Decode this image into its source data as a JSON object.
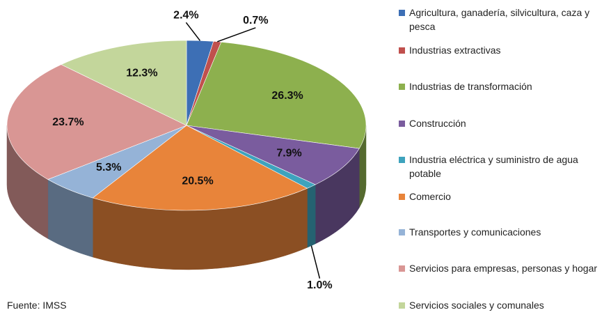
{
  "chart_data": {
    "type": "pie3d",
    "categories": [
      "Agricultura, ganadería, silvicultura, caza y pesca",
      "Industrias extractivas",
      "Industrias de transformación",
      "Construcción",
      "Industria eléctrica y suministro de agua potable",
      "Comercio",
      "Transportes y comunicaciones",
      "Servicios para empresas, personas y hogar",
      "Servicios sociales y comunales"
    ],
    "values": [
      2.4,
      0.7,
      26.3,
      7.9,
      1.0,
      20.5,
      5.3,
      23.7,
      12.3
    ],
    "value_labels": [
      "2.4%",
      "0.7%",
      "26.3%",
      "7.9%",
      "1.0%",
      "20.5%",
      "5.3%",
      "23.7%",
      "12.3%"
    ],
    "colors": [
      "#3d6fb5",
      "#c0504d",
      "#8db04e",
      "#7a5c9e",
      "#3ea3bd",
      "#e8843a",
      "#95b3d7",
      "#d99694",
      "#c3d69b"
    ],
    "source": "Fuente: IMSS"
  }
}
